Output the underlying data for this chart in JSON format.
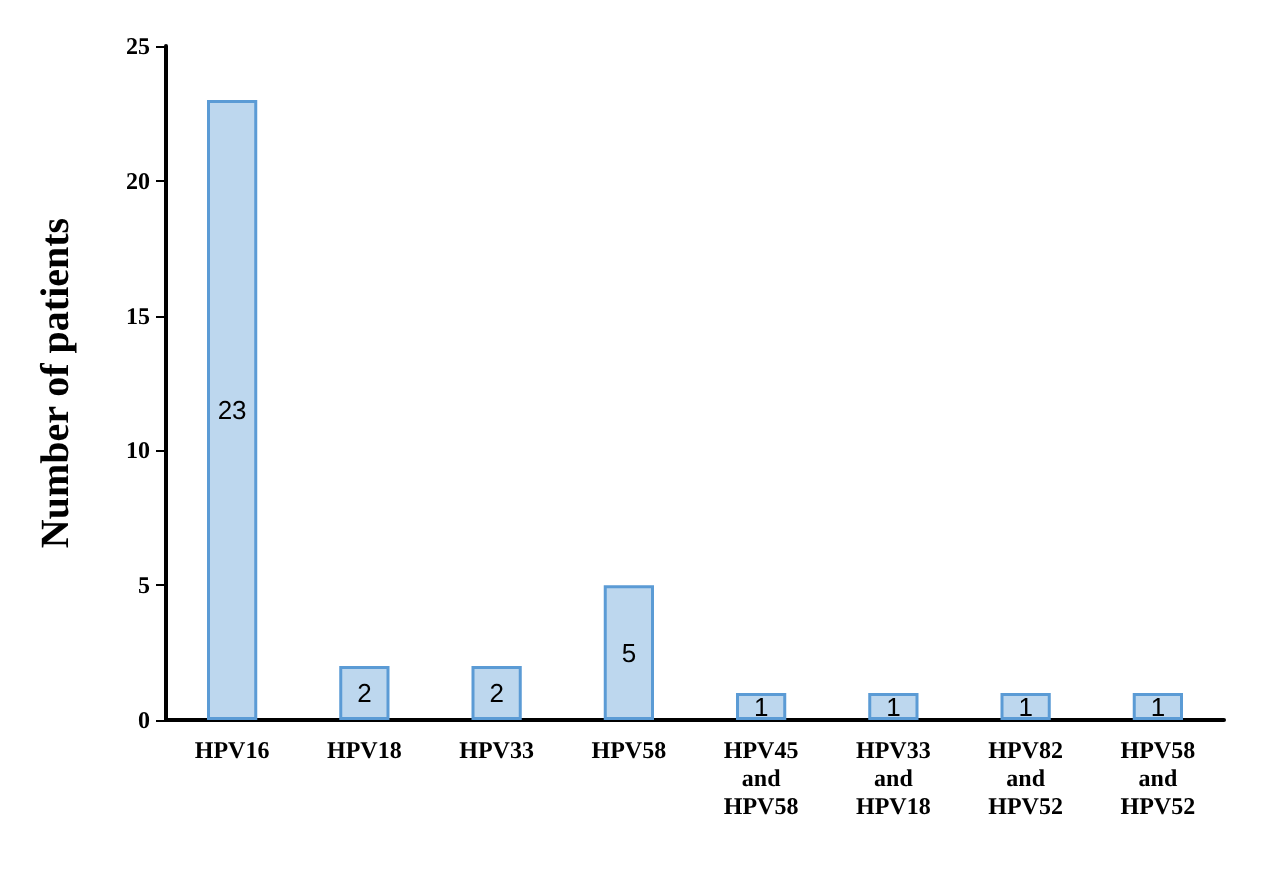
{
  "chart_data": {
    "type": "bar",
    "ylabel": "Number of patients",
    "categories": [
      "HPV16",
      "HPV18",
      "HPV33",
      "HPV58",
      "HPV45\nand\nHPV58",
      "HPV33\nand\nHPV18",
      "HPV82\nand\nHPV52",
      "HPV58\nand\nHPV52"
    ],
    "values": [
      23,
      2,
      2,
      5,
      1,
      1,
      1,
      1
    ],
    "color": "#bdd7ee",
    "ylim": [
      0,
      25
    ],
    "yticks": [
      0,
      5,
      10,
      15,
      20,
      25
    ],
    "grid": false,
    "data_labels": true
  }
}
